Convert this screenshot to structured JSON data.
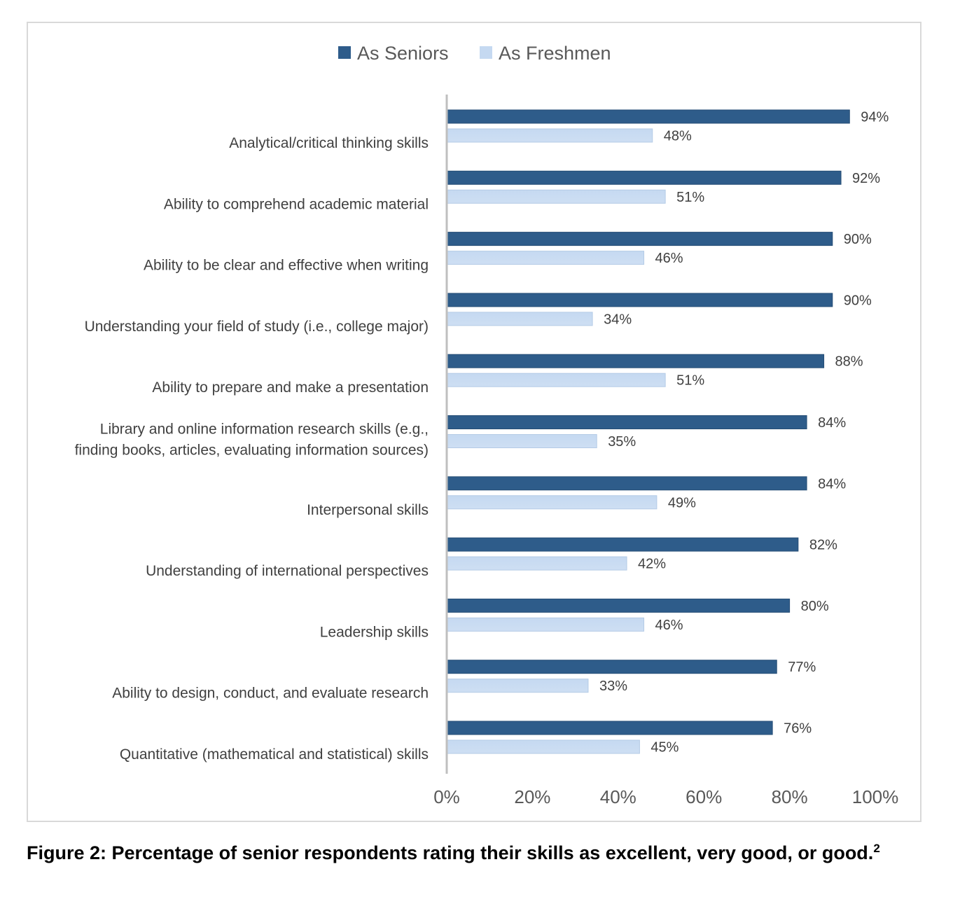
{
  "caption": {
    "text": "Figure 2: Percentage of senior respondents rating their skills as excellent, very good, or good.",
    "footnote_marker": "2"
  },
  "chart_data": {
    "type": "bar",
    "orientation": "horizontal",
    "categories": [
      [
        "Analytical/critical thinking skills"
      ],
      [
        "Ability to comprehend academic material"
      ],
      [
        "Ability to be clear and effective when writing"
      ],
      [
        "Understanding your field of study (i.e., college major)"
      ],
      [
        "Ability to prepare and make a presentation"
      ],
      [
        "Library and online information research skills (e.g.,",
        "finding books, articles, evaluating information sources)"
      ],
      [
        "Interpersonal skills"
      ],
      [
        "Understanding of international perspectives"
      ],
      [
        "Leadership skills"
      ],
      [
        "Ability to design, conduct, and evaluate research"
      ],
      [
        "Quantitative (mathematical and statistical) skills"
      ]
    ],
    "series": [
      {
        "name": "As Seniors",
        "color": "#2e5c8a",
        "values": [
          94,
          92,
          90,
          90,
          88,
          84,
          84,
          82,
          80,
          77,
          76
        ],
        "labels": [
          "94%",
          "92%",
          "90%",
          "90%",
          "88%",
          "84%",
          "84%",
          "82%",
          "80%",
          "77%",
          "76%"
        ]
      },
      {
        "name": "As Freshmen",
        "color": "#c5d9f1",
        "values": [
          48,
          51,
          46,
          34,
          51,
          35,
          49,
          42,
          46,
          33,
          45
        ],
        "labels": [
          "48%",
          "51%",
          "46%",
          "34%",
          "51%",
          "35%",
          "49%",
          "42%",
          "46%",
          "33%",
          "45%"
        ]
      }
    ],
    "xlim": [
      0,
      100
    ],
    "xticks": [
      0,
      20,
      40,
      60,
      80,
      100
    ],
    "xtick_labels": [
      "0%",
      "20%",
      "40%",
      "60%",
      "80%",
      "100%"
    ],
    "grid": false,
    "legend_position": "top-center"
  }
}
